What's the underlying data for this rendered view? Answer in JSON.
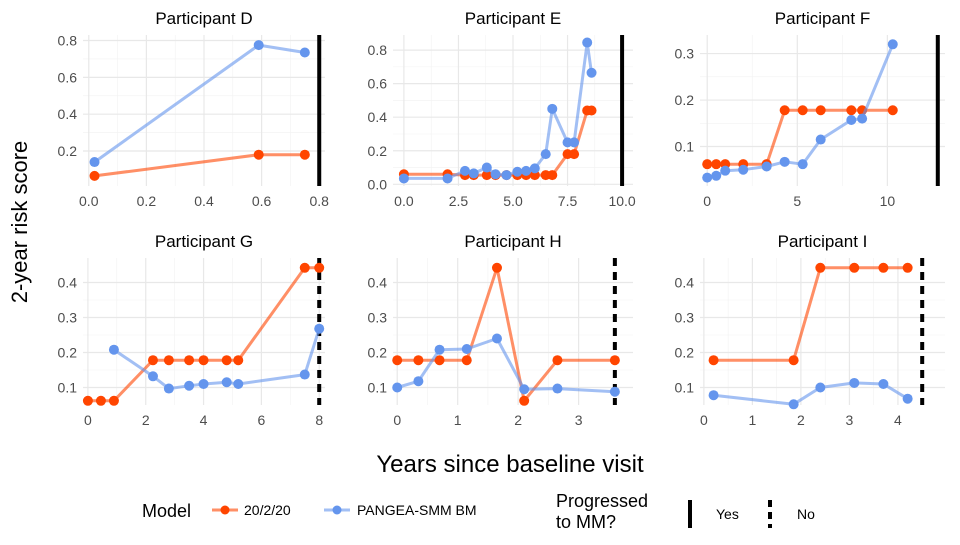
{
  "chart_data": {
    "type": "line",
    "xlabel": "Years since baseline visit",
    "ylabel": "2-year risk score",
    "grid": true,
    "legend_position": "bottom",
    "legend": {
      "model_title": "Model",
      "progressed_title_line1": "Progressed",
      "progressed_title_line2": "to MM?",
      "yes_label": "Yes",
      "no_label": "No"
    },
    "colors": {
      "20/2/20": "#ff4500",
      "PANGEA-SMM BM": "#6495ed"
    },
    "series_names": [
      "20/2/20",
      "PANGEA-SMM BM"
    ],
    "panels": [
      {
        "title": "Participant D",
        "progressed": "Yes",
        "progression_x": 0.8,
        "xlim": [
          -0.02,
          0.82
        ],
        "ylim": [
          0.01,
          0.83
        ],
        "xticks": [
          0.0,
          0.2,
          0.4,
          0.6,
          0.8
        ],
        "xtick_labels": [
          "0.0",
          "0.2",
          "0.4",
          "0.6",
          "0.8"
        ],
        "yticks": [
          0.2,
          0.4,
          0.6,
          0.8
        ],
        "ytick_labels": [
          "0.2",
          "0.4",
          "0.6",
          "0.8"
        ],
        "series": [
          {
            "name": "20/2/20",
            "x": [
              0.02,
              0.59,
              0.75
            ],
            "y": [
              0.065,
              0.18,
              0.18
            ]
          },
          {
            "name": "PANGEA-SMM BM",
            "x": [
              0.02,
              0.59,
              0.75
            ],
            "y": [
              0.14,
              0.775,
              0.735
            ]
          }
        ]
      },
      {
        "title": "Participant E",
        "progressed": "Yes",
        "progression_x": 10.0,
        "xlim": [
          -0.5,
          10.5
        ],
        "ylim": [
          -0.01,
          0.89
        ],
        "xticks": [
          0,
          2.5,
          5,
          7.5,
          10
        ],
        "xtick_labels": [
          "0.0",
          "2.5",
          "5.0",
          "7.5",
          "10.0"
        ],
        "yticks": [
          0,
          0.2,
          0.4,
          0.6,
          0.8
        ],
        "ytick_labels": [
          "0.0",
          "0.2",
          "0.4",
          "0.6",
          "0.8"
        ],
        "series": [
          {
            "name": "20/2/20",
            "x": [
              0,
              2,
              2.8,
              3.2,
              3.8,
              4.2,
              4.7,
              5.2,
              5.6,
              6.0,
              6.5,
              6.8,
              7.5,
              7.8,
              8.4,
              8.6
            ],
            "y": [
              0.06,
              0.06,
              0.055,
              0.055,
              0.055,
              0.055,
              0.055,
              0.055,
              0.055,
              0.055,
              0.055,
              0.055,
              0.18,
              0.18,
              0.44,
              0.44
            ]
          },
          {
            "name": "PANGEA-SMM BM",
            "x": [
              0,
              2,
              2.8,
              3.2,
              3.8,
              4.2,
              4.7,
              5.2,
              5.6,
              6.0,
              6.5,
              6.8,
              7.5,
              7.8,
              8.4,
              8.6
            ],
            "y": [
              0.035,
              0.035,
              0.08,
              0.065,
              0.1,
              0.06,
              0.055,
              0.075,
              0.08,
              0.095,
              0.18,
              0.45,
              0.25,
              0.25,
              0.845,
              0.665
            ]
          }
        ]
      },
      {
        "title": "Participant F",
        "progressed": "Yes",
        "progression_x": 12.8,
        "xlim": [
          -0.4,
          13.2
        ],
        "ylim": [
          0.015,
          0.34
        ],
        "xticks": [
          0,
          5,
          10
        ],
        "xtick_labels": [
          "0",
          "5",
          "10"
        ],
        "yticks": [
          0.1,
          0.2,
          0.3
        ],
        "ytick_labels": [
          "0.1",
          "0.2",
          "0.3"
        ],
        "series": [
          {
            "name": "20/2/20",
            "x": [
              0,
              0.5,
              1,
              2,
              3.3,
              4.3,
              5.3,
              6.3,
              8,
              8.6,
              10.3
            ],
            "y": [
              0.062,
              0.062,
              0.062,
              0.062,
              0.062,
              0.178,
              0.178,
              0.178,
              0.178,
              0.178,
              0.178
            ]
          },
          {
            "name": "PANGEA-SMM BM",
            "x": [
              0,
              0.5,
              1,
              2,
              3.3,
              4.3,
              5.3,
              6.3,
              8,
              8.6,
              10.3
            ],
            "y": [
              0.033,
              0.037,
              0.048,
              0.05,
              0.057,
              0.067,
              0.062,
              0.115,
              0.157,
              0.16,
              0.32
            ]
          }
        ]
      },
      {
        "title": "Participant G",
        "progressed": "No",
        "progression_x": 8.0,
        "xlim": [
          -0.17,
          8.2
        ],
        "ylim": [
          0.05,
          0.47
        ],
        "xticks": [
          0,
          2,
          4,
          6,
          8
        ],
        "xtick_labels": [
          "0",
          "2",
          "4",
          "6",
          "8"
        ],
        "yticks": [
          0.1,
          0.2,
          0.3,
          0.4
        ],
        "ytick_labels": [
          "0.1",
          "0.2",
          "0.3",
          "0.4"
        ],
        "series": [
          {
            "name": "20/2/20",
            "x": [
              0,
              0.45,
              0.9,
              2.25,
              2.8,
              3.5,
              4,
              4.8,
              5.2,
              7.5,
              8
            ],
            "y": [
              0.062,
              0.062,
              0.062,
              0.178,
              0.178,
              0.178,
              0.178,
              0.178,
              0.178,
              0.442,
              0.442
            ]
          },
          {
            "name": "PANGEA-SMM BM",
            "x": [
              0.9,
              2.25,
              2.8,
              3.5,
              4,
              4.8,
              5.2,
              7.5,
              8
            ],
            "y": [
              0.208,
              0.132,
              0.097,
              0.105,
              0.11,
              0.115,
              0.11,
              0.137,
              0.268
            ]
          }
        ]
      },
      {
        "title": "Participant H",
        "progressed": "No",
        "progression_x": 3.6,
        "xlim": [
          -0.07,
          3.9
        ],
        "ylim": [
          0.05,
          0.47
        ],
        "xticks": [
          0,
          1,
          2,
          3
        ],
        "xtick_labels": [
          "0",
          "1",
          "2",
          "3"
        ],
        "yticks": [
          0.1,
          0.2,
          0.3,
          0.4
        ],
        "ytick_labels": [
          "0.1",
          "0.2",
          "0.3",
          "0.4"
        ],
        "series": [
          {
            "name": "20/2/20",
            "x": [
              0,
              0.35,
              0.7,
              1.15,
              1.65,
              2.1,
              2.65,
              3.6
            ],
            "y": [
              0.178,
              0.178,
              0.178,
              0.178,
              0.442,
              0.062,
              0.178,
              0.178
            ]
          },
          {
            "name": "PANGEA-SMM BM",
            "x": [
              0,
              0.35,
              0.7,
              1.15,
              1.65,
              2.1,
              2.65,
              3.6
            ],
            "y": [
              0.1,
              0.118,
              0.208,
              0.21,
              0.24,
              0.095,
              0.097,
              0.088
            ]
          }
        ]
      },
      {
        "title": "Participant I",
        "progressed": "No",
        "progression_x": 4.5,
        "xlim": [
          -0.08,
          4.97
        ],
        "ylim": [
          0.05,
          0.47
        ],
        "xticks": [
          0,
          1,
          2,
          3,
          4
        ],
        "xtick_labels": [
          "0",
          "1",
          "2",
          "3",
          "4"
        ],
        "yticks": [
          0.1,
          0.2,
          0.3,
          0.4
        ],
        "ytick_labels": [
          "0.1",
          "0.2",
          "0.3",
          "0.4"
        ],
        "series": [
          {
            "name": "20/2/20",
            "x": [
              0.2,
              1.85,
              2.4,
              3.1,
              3.7,
              4.2
            ],
            "y": [
              0.178,
              0.178,
              0.442,
              0.442,
              0.442,
              0.442
            ]
          },
          {
            "name": "PANGEA-SMM BM",
            "x": [
              0.2,
              1.85,
              2.4,
              3.1,
              3.7,
              4.2
            ],
            "y": [
              0.078,
              0.052,
              0.1,
              0.113,
              0.11,
              0.068
            ]
          }
        ]
      }
    ]
  }
}
